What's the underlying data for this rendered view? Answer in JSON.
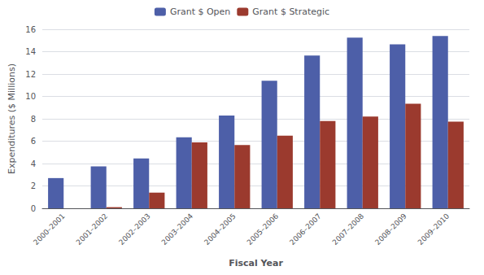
{
  "chart_data": {
    "type": "bar",
    "xlabel": "Fiscal Year",
    "ylabel": "Expenditures ($ Millions)",
    "categories": [
      "2000–2001",
      "2001–2002",
      "2002–2003",
      "2003–2004",
      "2004–2005",
      "2005–2006",
      "2006–2007",
      "2007–2008",
      "2008–2009",
      "2009–2010"
    ],
    "series": [
      {
        "name": "Grant $ Open",
        "color": "#4D5FA8",
        "values": [
          2.7,
          3.75,
          4.45,
          6.35,
          8.3,
          11.4,
          13.65,
          15.25,
          14.65,
          15.4
        ]
      },
      {
        "name": "Grant $ Strategic",
        "color": "#9B3A2E",
        "values": [
          0.0,
          0.1,
          1.4,
          5.9,
          5.65,
          6.5,
          7.8,
          8.2,
          9.35,
          7.75
        ]
      }
    ],
    "ylim": [
      0,
      16
    ],
    "yticks": [
      0,
      2,
      4,
      6,
      8,
      10,
      12,
      14,
      16
    ],
    "grid": true,
    "legend": "top"
  }
}
